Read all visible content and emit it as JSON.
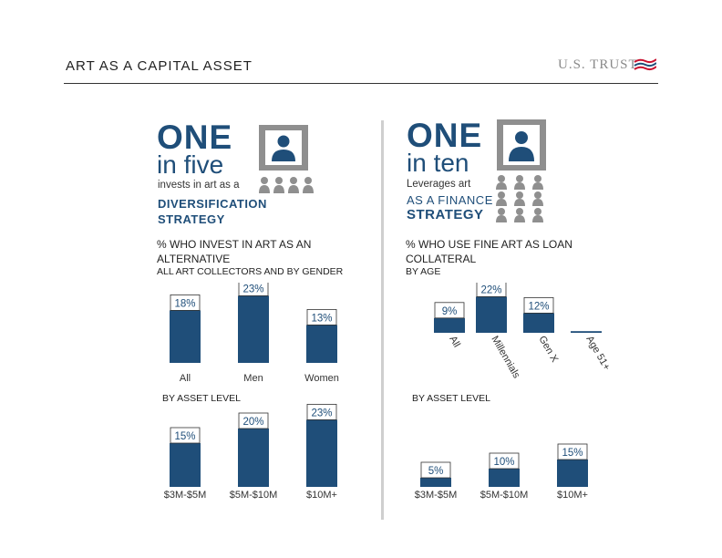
{
  "header": {
    "title": "ART AS A CAPITAL ASSET",
    "logo_text": "U.S. TRUST",
    "brand_color": "#1f4e79"
  },
  "left": {
    "big_number": "ONE",
    "big_fraction": "in five",
    "desc_line1": "invests in art as a",
    "desc_line2": "DIVERSIFICATION",
    "desc_line3": "STRATEGY",
    "section_title": "% WHO INVEST IN ART AS AN ALTERNATIVE",
    "section_subtitle": "ALL ART COLLECTORS AND BY GENDER",
    "asset_level_label": "BY ASSET LEVEL"
  },
  "right": {
    "big_number": "ONE",
    "big_fraction": "in ten",
    "desc_line1": "Leverages art",
    "desc_line2": "AS A FINANCE",
    "desc_line3": "STRATEGY",
    "section_title": "% WHO USE FINE ART AS LOAN COLLATERAL",
    "section_subtitle": "BY AGE",
    "asset_level_label": "BY ASSET LEVEL"
  },
  "icons": {
    "frame_icon": "framed-portrait-icon",
    "person_icon": "person-icon"
  },
  "chart_data": [
    {
      "type": "bar",
      "categories": [
        "All",
        "Men",
        "Women"
      ],
      "values": [
        18,
        23,
        13
      ],
      "labels": [
        "18%",
        "23%",
        "13%"
      ],
      "title": "% WHO INVEST IN ART AS AN ALTERNATIVE",
      "ylim": [
        0,
        25
      ],
      "color": "#1f4e79"
    },
    {
      "type": "bar",
      "categories": [
        "$3M-$5M",
        "$5M-$10M",
        "$10M+"
      ],
      "values": [
        15,
        20,
        23
      ],
      "labels": [
        "15%",
        "20%",
        "23%"
      ],
      "title": "BY ASSET LEVEL",
      "ylim": [
        0,
        25
      ],
      "color": "#1f4e79"
    },
    {
      "type": "bar",
      "categories": [
        "All",
        "Millennials",
        "Gen X",
        "Age 51+"
      ],
      "values": [
        9,
        22,
        12,
        1
      ],
      "labels": [
        "9%",
        "22%",
        "12%",
        ""
      ],
      "title": "% WHO USE FINE ART AS LOAN COLLATERAL",
      "ylim": [
        0,
        25
      ],
      "color": "#1f4e79"
    },
    {
      "type": "bar",
      "categories": [
        "$3M-$5M",
        "$5M-$10M",
        "$10M+"
      ],
      "values": [
        5,
        10,
        15
      ],
      "labels": [
        "5%",
        "10%",
        "15%"
      ],
      "title": "BY ASSET LEVEL",
      "ylim": [
        0,
        25
      ],
      "color": "#1f4e79"
    }
  ]
}
